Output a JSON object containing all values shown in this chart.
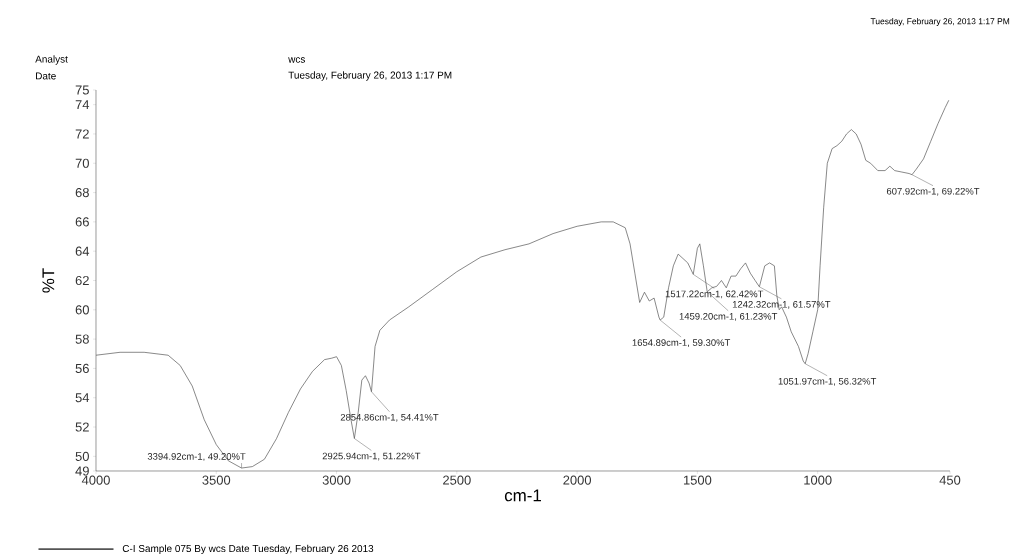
{
  "chart_data": {
    "type": "line",
    "xlabel": "cm-1",
    "ylabel": "%T",
    "xlim": [
      4000,
      450
    ],
    "xticks": [
      4000,
      3500,
      3000,
      2500,
      2000,
      1500,
      1000,
      450
    ],
    "ylim": [
      49,
      75
    ],
    "yticks": [
      49,
      50,
      52,
      54,
      56,
      58,
      60,
      62,
      64,
      66,
      68,
      70,
      72,
      74,
      75
    ],
    "grid": false,
    "legend": "bottom",
    "marker": "none",
    "line_style": "solid",
    "series": [
      {
        "name": "C-I Sample 075 By wcs Date Tuesday, February 26 2013",
        "color": "#555555",
        "x": [
          4000,
          3900,
          3800,
          3700,
          3650,
          3600,
          3550,
          3500,
          3450,
          3394.92,
          3350,
          3300,
          3250,
          3200,
          3150,
          3100,
          3050,
          3020,
          3000,
          2980,
          2960,
          2940,
          2925.94,
          2910,
          2895,
          2880,
          2865,
          2854.86,
          2840,
          2820,
          2780,
          2700,
          2600,
          2500,
          2400,
          2300,
          2200,
          2100,
          2000,
          1900,
          1850,
          1800,
          1780,
          1760,
          1740,
          1720,
          1700,
          1680,
          1660,
          1654.89,
          1640,
          1620,
          1600,
          1580,
          1560,
          1540,
          1517.22,
          1500,
          1490,
          1475,
          1459.2,
          1440,
          1420,
          1400,
          1380,
          1360,
          1340,
          1320,
          1300,
          1280,
          1260,
          1242.32,
          1220,
          1200,
          1180,
          1170,
          1160,
          1150,
          1130,
          1110,
          1080,
          1060,
          1051.97,
          1040,
          1020,
          1000,
          990,
          975,
          960,
          940,
          920,
          900,
          880,
          860,
          840,
          820,
          800,
          780,
          750,
          720,
          700,
          680,
          650,
          620,
          607.92,
          590,
          560,
          530,
          500,
          470,
          455
        ],
        "values": [
          56.9,
          57.1,
          57.1,
          56.9,
          56.2,
          54.8,
          52.5,
          50.8,
          49.7,
          49.2,
          49.3,
          49.8,
          51.2,
          53,
          54.6,
          55.8,
          56.6,
          56.7,
          56.8,
          56.2,
          54.5,
          52.5,
          51.22,
          53,
          55.2,
          55.5,
          55,
          54.41,
          57.5,
          58.6,
          59.3,
          60.2,
          61.4,
          62.6,
          63.6,
          64.1,
          64.5,
          65.2,
          65.7,
          66.0,
          66.0,
          65.6,
          64.5,
          62.5,
          60.5,
          61.2,
          60.6,
          60.8,
          59.5,
          59.3,
          59.5,
          61.5,
          63.0,
          63.8,
          63.5,
          63.2,
          62.42,
          64.2,
          64.5,
          63.0,
          61.23,
          61.5,
          61.6,
          62.0,
          61.5,
          62.3,
          62.3,
          62.8,
          63.2,
          62.5,
          62.0,
          61.57,
          63.0,
          63.2,
          63.0,
          61.0,
          60.0,
          60.2,
          59.5,
          58.5,
          57.5,
          56.5,
          56.32,
          57,
          58.5,
          60,
          63,
          67,
          70,
          71,
          71.2,
          71.5,
          72,
          72.3,
          72.0,
          71.3,
          70.2,
          70.0,
          69.5,
          69.5,
          69.8,
          69.5,
          69.4,
          69.3,
          69.22,
          69.6,
          70.3,
          71.5,
          72.7,
          73.8,
          74.3
        ]
      }
    ],
    "annotations": [
      "Analyst",
      "wcs",
      "Date",
      "Tuesday, February 26, 2013 1:17 PM",
      "Tuesday, February 26, 2013 1:17 PM",
      {
        "text": "3394.92cm-1, 49.20%T",
        "x": 3394.92,
        "y": 49.2
      },
      {
        "text": "2925.94cm-1, 51.22%T",
        "x": 2925.94,
        "y": 51.22
      },
      {
        "text": "2854.86cm-1, 54.41%T",
        "x": 2854.86,
        "y": 54.41
      },
      {
        "text": "1654.89cm-1, 59.30%T",
        "x": 1654.89,
        "y": 59.3
      },
      {
        "text": "1517.22cm-1, 62.42%T",
        "x": 1517.22,
        "y": 62.42
      },
      {
        "text": "1459.20cm-1, 61.23%T",
        "x": 1459.2,
        "y": 61.23
      },
      {
        "text": "1242.32cm-1, 61.57%T",
        "x": 1242.32,
        "y": 61.57
      },
      {
        "text": "1051.97cm-1, 56.32%T",
        "x": 1051.97,
        "y": 56.32
      },
      {
        "text": "607.92cm-1, 69.22%T",
        "x": 607.92,
        "y": 69.22
      }
    ]
  }
}
